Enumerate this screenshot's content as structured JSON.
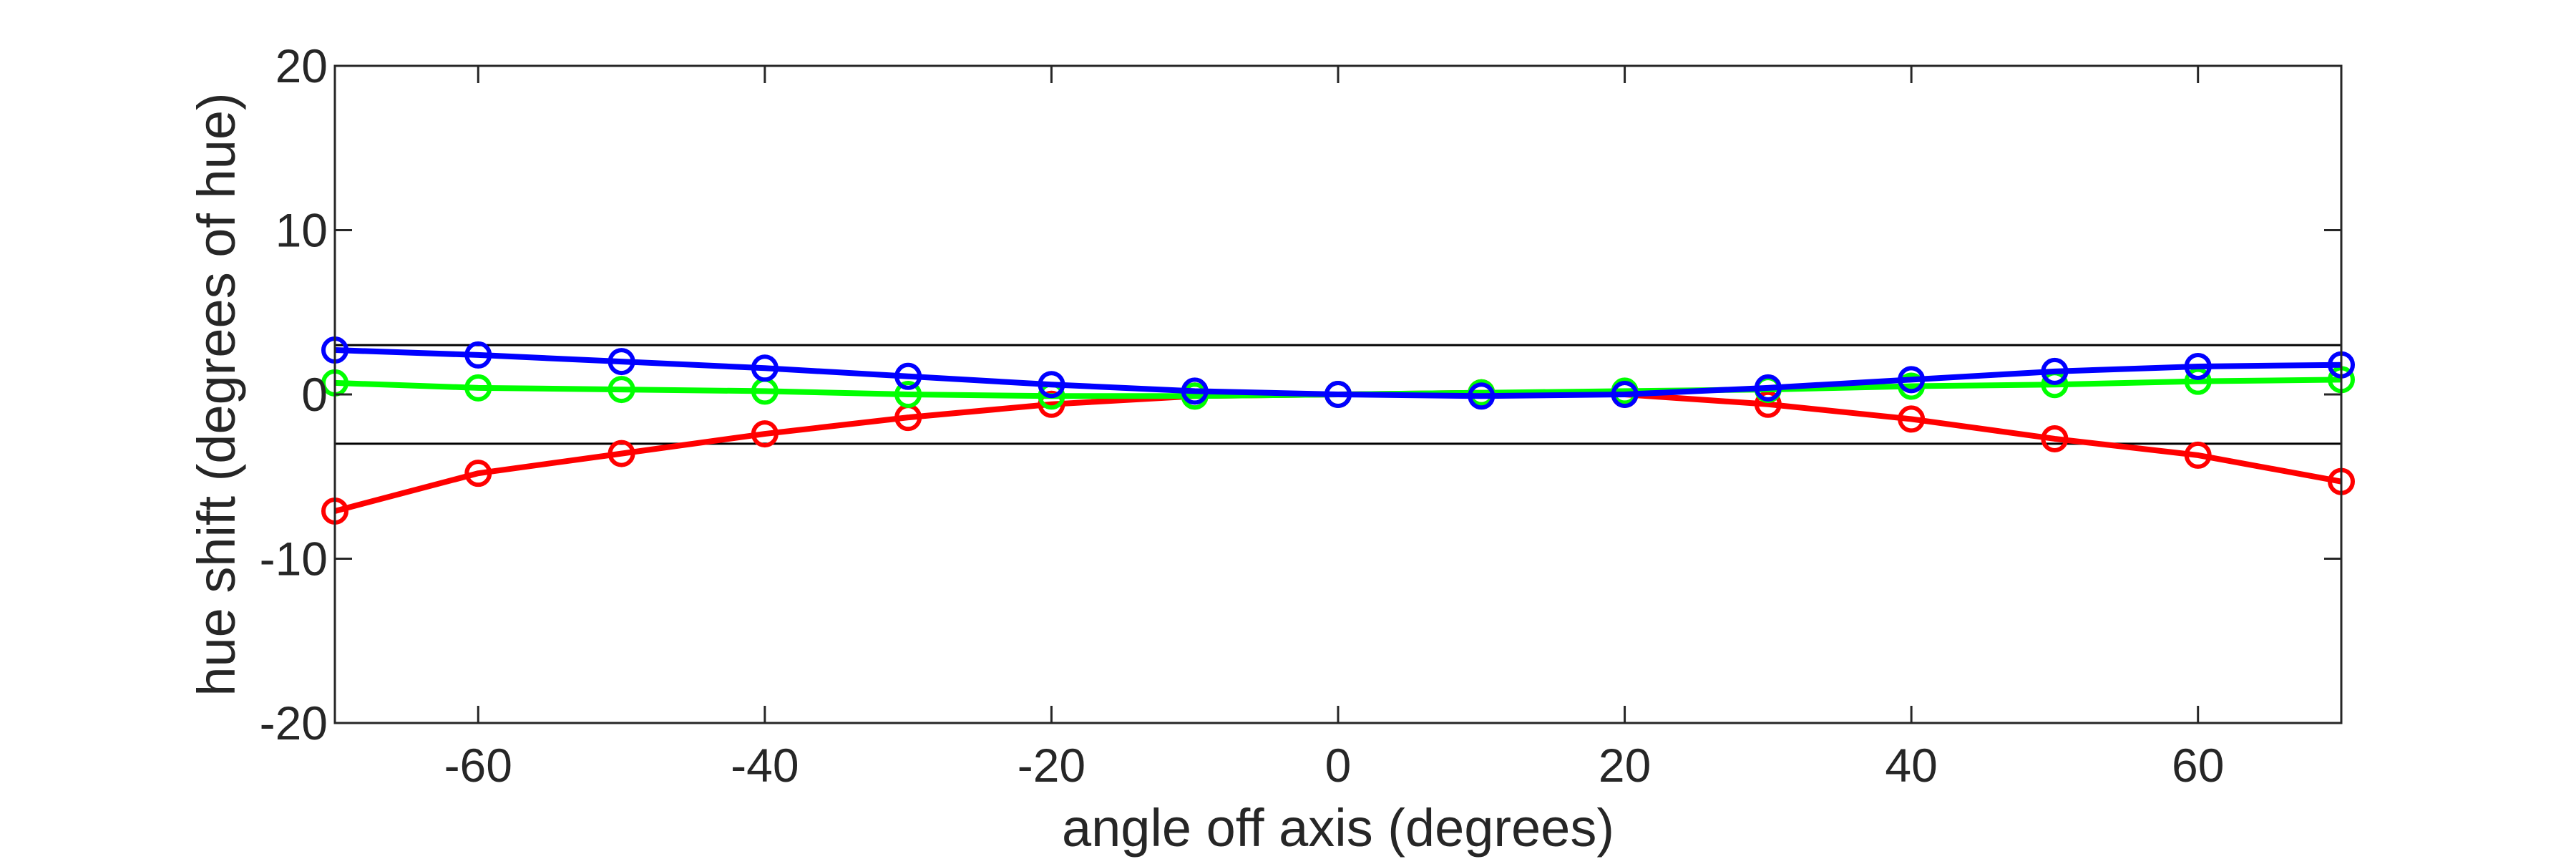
{
  "chart_data": {
    "type": "line",
    "title": "",
    "xlabel": "angle off axis (degrees)",
    "ylabel": "hue shift (degrees of hue)",
    "xlim": [
      -70,
      70
    ],
    "ylim": [
      -20,
      20
    ],
    "xticks": [
      -60,
      -40,
      -20,
      0,
      20,
      40,
      60
    ],
    "yticks": [
      -20,
      -10,
      0,
      10,
      20
    ],
    "grid": false,
    "legend": "none",
    "x": [
      -70,
      -60,
      -50,
      -40,
      -30,
      -20,
      -10,
      0,
      10,
      20,
      30,
      40,
      50,
      60,
      70
    ],
    "reference_lines": [
      3,
      -3
    ],
    "series": [
      {
        "color": "#ff0000",
        "marker": "circle",
        "values": [
          -7.1,
          -4.8,
          -3.6,
          -2.4,
          -1.4,
          -0.6,
          -0.1,
          0.0,
          0.1,
          0.0,
          -0.6,
          -1.5,
          -2.7,
          -3.7,
          -5.3
        ]
      },
      {
        "color": "#00ff00",
        "marker": "circle",
        "values": [
          0.7,
          0.4,
          0.3,
          0.2,
          0.0,
          -0.1,
          -0.1,
          0.0,
          0.1,
          0.2,
          0.3,
          0.5,
          0.6,
          0.8,
          0.9
        ]
      },
      {
        "color": "#0000ff",
        "marker": "circle",
        "values": [
          2.7,
          2.4,
          2.0,
          1.6,
          1.1,
          0.6,
          0.2,
          0.0,
          -0.1,
          0.0,
          0.4,
          0.9,
          1.4,
          1.7,
          1.8
        ]
      }
    ]
  }
}
